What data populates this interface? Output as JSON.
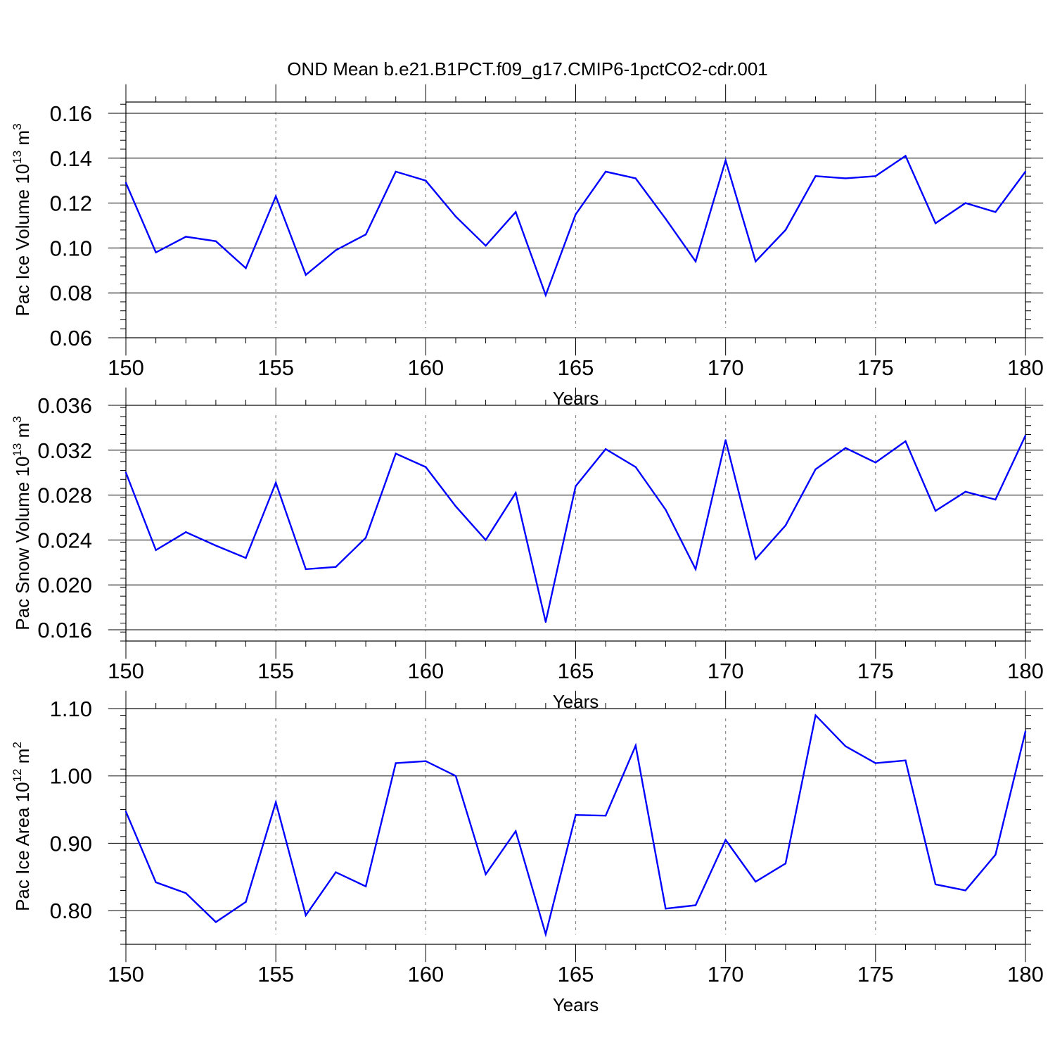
{
  "figure_title": "OND Mean b.e21.B1PCT.f09_g17.CMIP6-1pctCO2-cdr.001",
  "colors": {
    "line": "#0000ff",
    "axis": "#000000",
    "grid": "#888888"
  },
  "chart_data": [
    {
      "type": "line",
      "ylabel_main": "Pac Ice Volume 10",
      "ylabel_exp": "13",
      "ylabel_unit": " m",
      "ylabel_unit_exp": "3",
      "xlabel": "Years",
      "xlim": [
        150,
        180
      ],
      "ylim": [
        0.06,
        0.165
      ],
      "xticks": [
        150,
        155,
        160,
        165,
        170,
        175,
        180
      ],
      "xtick_labels": [
        "150",
        "155",
        "160",
        "165",
        "170",
        "175",
        "180"
      ],
      "yticks": [
        0.06,
        0.08,
        0.1,
        0.12,
        0.14,
        0.16
      ],
      "ytick_labels": [
        "0.06",
        "0.08",
        "0.10",
        "0.12",
        "0.14",
        "0.16"
      ],
      "y_minor_step": 0.004,
      "x": [
        150,
        151,
        152,
        153,
        154,
        155,
        156,
        157,
        158,
        159,
        160,
        161,
        162,
        163,
        164,
        165,
        166,
        167,
        168,
        169,
        170,
        171,
        172,
        173,
        174,
        175,
        176,
        177,
        178,
        179,
        180
      ],
      "series": [
        {
          "name": "Pac Ice Volume",
          "values": [
            0.129,
            0.098,
            0.105,
            0.103,
            0.091,
            0.123,
            0.088,
            0.099,
            0.106,
            0.134,
            0.13,
            0.114,
            0.101,
            0.116,
            0.079,
            0.115,
            0.134,
            0.131,
            0.113,
            0.094,
            0.139,
            0.094,
            0.108,
            0.132,
            0.131,
            0.132,
            0.141,
            0.111,
            0.12,
            0.116,
            0.134
          ]
        }
      ]
    },
    {
      "type": "line",
      "ylabel_main": "Pac Snow Volume 10",
      "ylabel_exp": "13",
      "ylabel_unit": " m",
      "ylabel_unit_exp": "3",
      "xlabel": "Years",
      "xlim": [
        150,
        180
      ],
      "ylim": [
        0.015,
        0.036
      ],
      "xticks": [
        150,
        155,
        160,
        165,
        170,
        175,
        180
      ],
      "xtick_labels": [
        "150",
        "155",
        "160",
        "165",
        "170",
        "175",
        "180"
      ],
      "yticks": [
        0.016,
        0.02,
        0.024,
        0.028,
        0.032,
        0.036
      ],
      "ytick_labels": [
        "0.016",
        "0.020",
        "0.024",
        "0.028",
        "0.032",
        "0.036"
      ],
      "y_minor_step": 0.0008,
      "x": [
        150,
        151,
        152,
        153,
        154,
        155,
        156,
        157,
        158,
        159,
        160,
        161,
        162,
        163,
        164,
        165,
        166,
        167,
        168,
        169,
        170,
        171,
        172,
        173,
        174,
        175,
        176,
        177,
        178,
        179,
        180
      ],
      "series": [
        {
          "name": "Pac Snow Volume",
          "values": [
            0.03,
            0.0231,
            0.0247,
            0.0235,
            0.0224,
            0.0291,
            0.0214,
            0.0216,
            0.0242,
            0.0317,
            0.0305,
            0.027,
            0.024,
            0.0282,
            0.0167,
            0.0288,
            0.0321,
            0.0305,
            0.0267,
            0.0214,
            0.0329,
            0.0223,
            0.0253,
            0.0303,
            0.0322,
            0.0309,
            0.0328,
            0.0266,
            0.0283,
            0.0276,
            0.0333
          ]
        }
      ]
    },
    {
      "type": "line",
      "ylabel_main": "Pac Ice Area 10",
      "ylabel_exp": "12",
      "ylabel_unit": " m",
      "ylabel_unit_exp": "2",
      "xlabel": "Years",
      "xlim": [
        150,
        180
      ],
      "ylim": [
        0.75,
        1.1
      ],
      "xticks": [
        150,
        155,
        160,
        165,
        170,
        175,
        180
      ],
      "xtick_labels": [
        "150",
        "155",
        "160",
        "165",
        "170",
        "175",
        "180"
      ],
      "yticks": [
        0.8,
        0.9,
        1.0,
        1.1
      ],
      "ytick_labels": [
        "0.80",
        "0.90",
        "1.00",
        "1.10"
      ],
      "y_minor_step": 0.02,
      "x": [
        150,
        151,
        152,
        153,
        154,
        155,
        156,
        157,
        158,
        159,
        160,
        161,
        162,
        163,
        164,
        165,
        166,
        167,
        168,
        169,
        170,
        171,
        172,
        173,
        174,
        175,
        176,
        177,
        178,
        179,
        180
      ],
      "series": [
        {
          "name": "Pac Ice Area",
          "values": [
            0.947,
            0.842,
            0.826,
            0.783,
            0.813,
            0.961,
            0.793,
            0.857,
            0.836,
            1.019,
            1.022,
            1.0,
            0.854,
            0.918,
            0.765,
            0.942,
            0.941,
            1.045,
            0.803,
            0.808,
            0.905,
            0.843,
            0.87,
            1.09,
            1.044,
            1.019,
            1.023,
            0.839,
            0.83,
            0.883,
            1.066
          ]
        }
      ]
    }
  ]
}
